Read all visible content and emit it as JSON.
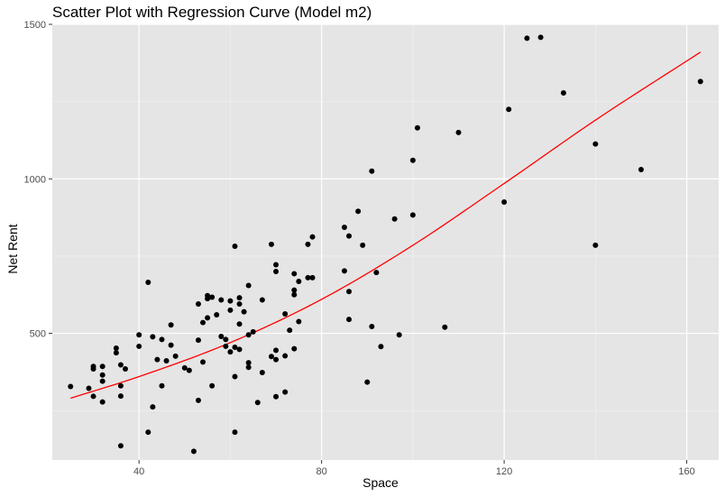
{
  "chart_data": {
    "type": "scatter",
    "title": "Scatter Plot with Regression Curve (Model m2)",
    "xlabel": "Space",
    "ylabel": "Net Rent",
    "xlim": [
      21,
      167
    ],
    "ylim": [
      90,
      1500
    ],
    "x_ticks": [
      40,
      80,
      120,
      160
    ],
    "y_ticks": [
      500,
      1000,
      1500
    ],
    "grid": true,
    "background": "#e5e5e5",
    "point_color": "#000000",
    "curve_color": "#ff0000",
    "points": [
      [
        25,
        328
      ],
      [
        29,
        322
      ],
      [
        30,
        296
      ],
      [
        30,
        385
      ],
      [
        30,
        393
      ],
      [
        32,
        278
      ],
      [
        32,
        345
      ],
      [
        32,
        365
      ],
      [
        32,
        393
      ],
      [
        35,
        437
      ],
      [
        35,
        452
      ],
      [
        36,
        136
      ],
      [
        36,
        297
      ],
      [
        36,
        330
      ],
      [
        36,
        398
      ],
      [
        37,
        385
      ],
      [
        40,
        458
      ],
      [
        40,
        495
      ],
      [
        42,
        180
      ],
      [
        42,
        665
      ],
      [
        43,
        262
      ],
      [
        43,
        489
      ],
      [
        44,
        415
      ],
      [
        45,
        330
      ],
      [
        45,
        480
      ],
      [
        46,
        411
      ],
      [
        47,
        462
      ],
      [
        47,
        527
      ],
      [
        48,
        426
      ],
      [
        50,
        388
      ],
      [
        51,
        380
      ],
      [
        52,
        118
      ],
      [
        53,
        283
      ],
      [
        53,
        478
      ],
      [
        53,
        595
      ],
      [
        54,
        407
      ],
      [
        54,
        535
      ],
      [
        55,
        550
      ],
      [
        55,
        612
      ],
      [
        55,
        622
      ],
      [
        56,
        330
      ],
      [
        56,
        617
      ],
      [
        57,
        560
      ],
      [
        58,
        490
      ],
      [
        58,
        608
      ],
      [
        59,
        480
      ],
      [
        59,
        458
      ],
      [
        60,
        440
      ],
      [
        60,
        575
      ],
      [
        60,
        605
      ],
      [
        61,
        180
      ],
      [
        61,
        360
      ],
      [
        61,
        455
      ],
      [
        61,
        782
      ],
      [
        62,
        448
      ],
      [
        62,
        530
      ],
      [
        62,
        595
      ],
      [
        62,
        615
      ],
      [
        63,
        570
      ],
      [
        64,
        390
      ],
      [
        64,
        405
      ],
      [
        64,
        495
      ],
      [
        64,
        655
      ],
      [
        65,
        505
      ],
      [
        66,
        276
      ],
      [
        67,
        373
      ],
      [
        67,
        608
      ],
      [
        69,
        425
      ],
      [
        69,
        788
      ],
      [
        70,
        295
      ],
      [
        70,
        415
      ],
      [
        70,
        445
      ],
      [
        70,
        700
      ],
      [
        70,
        722
      ],
      [
        72,
        310
      ],
      [
        72,
        427
      ],
      [
        72,
        563
      ],
      [
        73,
        510
      ],
      [
        74,
        450
      ],
      [
        74,
        625
      ],
      [
        74,
        640
      ],
      [
        74,
        693
      ],
      [
        75,
        538
      ],
      [
        75,
        668
      ],
      [
        77,
        680
      ],
      [
        77,
        788
      ],
      [
        78,
        680
      ],
      [
        78,
        812
      ],
      [
        85,
        843
      ],
      [
        85,
        702
      ],
      [
        86,
        545
      ],
      [
        86,
        635
      ],
      [
        86,
        815
      ],
      [
        88,
        895
      ],
      [
        89,
        785
      ],
      [
        90,
        342
      ],
      [
        91,
        522
      ],
      [
        91,
        1025
      ],
      [
        92,
        697
      ],
      [
        93,
        457
      ],
      [
        96,
        870
      ],
      [
        97,
        495
      ],
      [
        100,
        1060
      ],
      [
        100,
        883
      ],
      [
        101,
        1165
      ],
      [
        107,
        520
      ],
      [
        110,
        1150
      ],
      [
        120,
        925
      ],
      [
        121,
        1225
      ],
      [
        125,
        1455
      ],
      [
        128,
        1458
      ],
      [
        133,
        1278
      ],
      [
        140,
        1113
      ],
      [
        140,
        785
      ],
      [
        150,
        1030
      ],
      [
        163,
        1315
      ]
    ],
    "curve": {
      "x": [
        25,
        40,
        60,
        80,
        100,
        120,
        140,
        163
      ],
      "y": [
        290,
        360,
        470,
        610,
        785,
        985,
        1190,
        1410
      ]
    }
  }
}
